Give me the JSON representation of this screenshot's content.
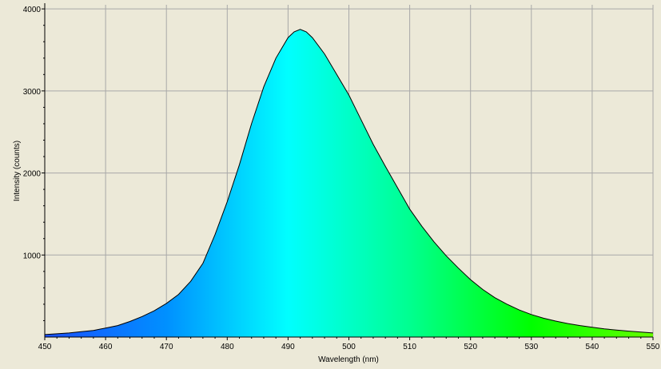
{
  "chart_data": {
    "type": "area",
    "title": "",
    "xlabel": "Wavelength (nm)",
    "ylabel": "Intensity (counts)",
    "xlim": [
      450,
      550
    ],
    "ylim": [
      0,
      4050
    ],
    "x_ticks": [
      450,
      460,
      470,
      480,
      490,
      500,
      510,
      520,
      530,
      540,
      550
    ],
    "y_ticks": [
      1000,
      2000,
      3000,
      4000
    ],
    "grid": true,
    "fill": "spectral-gradient",
    "colors": {
      "background": "#ece9d8",
      "grid": "#a8a8a8",
      "axis": "#000000",
      "line": "#000000",
      "gradient": [
        "#1a4fff",
        "#0090ff",
        "#00ffff",
        "#00ff90",
        "#00ff00",
        "#66ff00"
      ]
    },
    "x": [
      450,
      452,
      454,
      456,
      458,
      460,
      462,
      464,
      466,
      468,
      470,
      472,
      474,
      476,
      478,
      480,
      482,
      484,
      486,
      488,
      490,
      491,
      492,
      493,
      494,
      496,
      498,
      500,
      502,
      504,
      506,
      508,
      510,
      512,
      514,
      516,
      518,
      520,
      522,
      524,
      526,
      528,
      530,
      532,
      534,
      536,
      538,
      540,
      542,
      544,
      546,
      548,
      550
    ],
    "y": [
      30,
      40,
      50,
      65,
      80,
      110,
      140,
      190,
      250,
      320,
      410,
      520,
      680,
      900,
      1250,
      1650,
      2100,
      2600,
      3050,
      3400,
      3650,
      3720,
      3750,
      3720,
      3650,
      3450,
      3200,
      2950,
      2650,
      2350,
      2080,
      1820,
      1560,
      1350,
      1160,
      990,
      840,
      700,
      580,
      480,
      400,
      330,
      275,
      230,
      195,
      165,
      140,
      120,
      100,
      85,
      72,
      60,
      50
    ]
  }
}
